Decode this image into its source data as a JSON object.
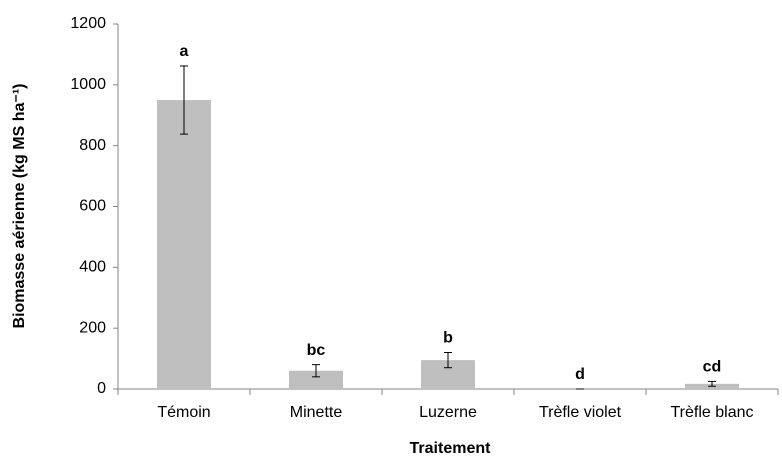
{
  "chart_data": {
    "type": "bar",
    "xlabel": "Traitement",
    "ylabel": "Biomasse aérienne (kg MS ha⁻¹)",
    "categories": [
      "Témoin",
      "Minette",
      "Luzerne",
      "Trèfle violet",
      "Trèfle blanc"
    ],
    "values": [
      950,
      60,
      95,
      0,
      17
    ],
    "errors": [
      112,
      20,
      25,
      0,
      8
    ],
    "annotations": [
      "a",
      "bc",
      "b",
      "d",
      "cd"
    ],
    "color": "#bfbfbf",
    "ylim": [
      0,
      1200
    ],
    "yticks": [
      0,
      200,
      400,
      600,
      800,
      1000,
      1200
    ],
    "grid": false
  }
}
